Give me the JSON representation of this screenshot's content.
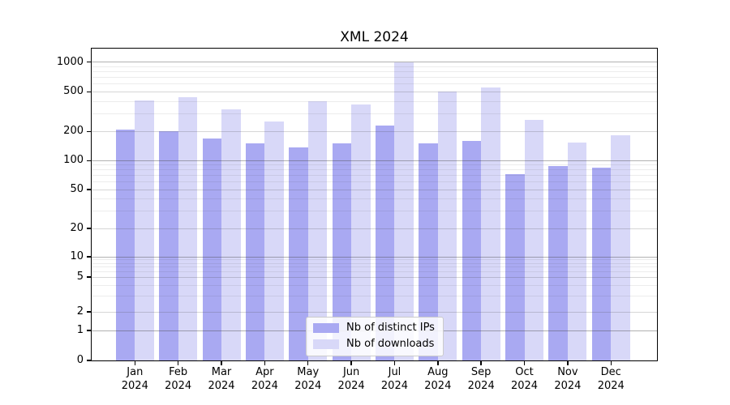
{
  "title": "XML 2024",
  "chart_data": {
    "type": "bar",
    "title": "XML 2024",
    "categories": [
      "Jan 2024",
      "Feb 2024",
      "Mar 2024",
      "Apr 2024",
      "May 2024",
      "Jun 2024",
      "Jul 2024",
      "Aug 2024",
      "Sep 2024",
      "Oct 2024",
      "Nov 2024",
      "Dec 2024"
    ],
    "series": [
      {
        "name": "Nb of distinct IPs",
        "color": "#a9a9f2",
        "values": [
          210,
          200,
          170,
          150,
          138,
          152,
          228,
          150,
          160,
          72,
          88,
          85
        ]
      },
      {
        "name": "Nb of downloads",
        "color": "#d8d8f8",
        "values": [
          410,
          445,
          335,
          250,
          400,
          375,
          990,
          505,
          550,
          260,
          155,
          183
        ]
      }
    ],
    "xlabel": "",
    "ylabel": "",
    "y_scale": "log",
    "ylim": [
      0,
      1000
    ],
    "y_tick_values": [
      0,
      1,
      2,
      5,
      10,
      20,
      50,
      100,
      200,
      500,
      1000
    ],
    "grid": true,
    "legend_position": "lower center"
  }
}
